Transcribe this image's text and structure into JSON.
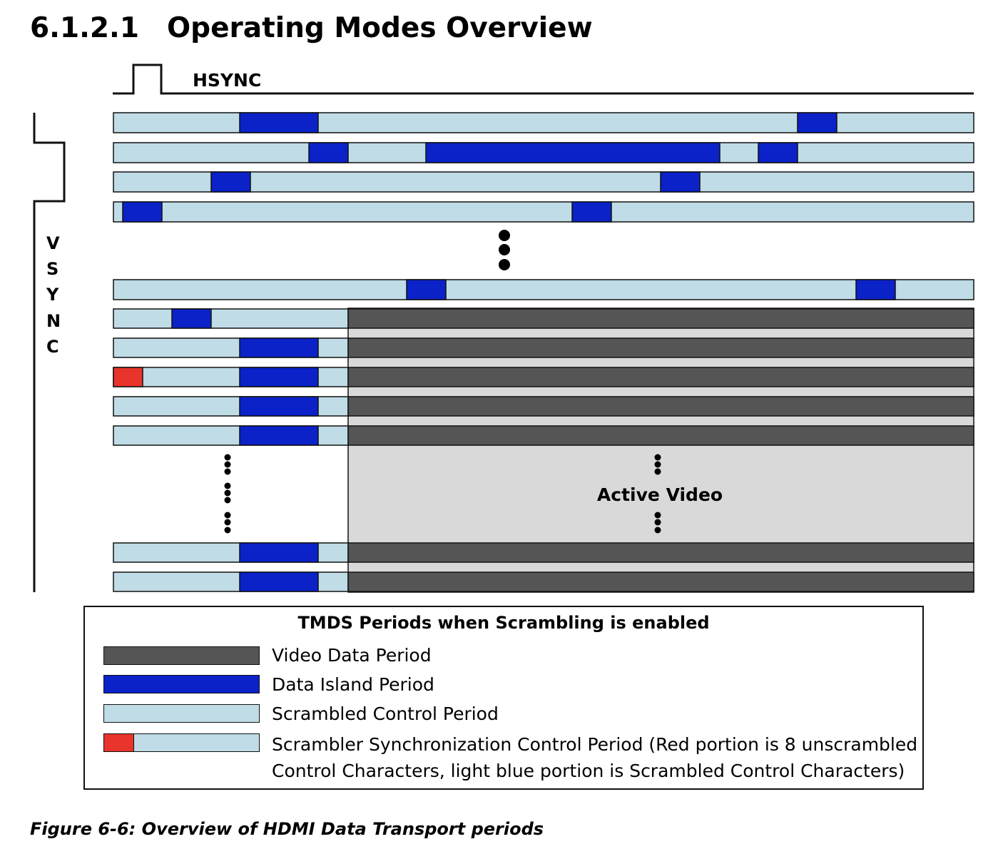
{
  "section": {
    "number": "6.1.2.1",
    "title": "Operating Modes Overview"
  },
  "diagram": {
    "hsync_label": "HSYNC",
    "vsync_letters": [
      "V",
      "S",
      "Y",
      "N",
      "C"
    ],
    "active_video_label": "Active Video",
    "colors": {
      "video_data": "#555555",
      "data_island": "#0a22c8",
      "scrambled_control": "#c0dce6",
      "scrambler_sync_red": "#e8342a",
      "active_video_fill": "#d9d9d9"
    }
  },
  "legend": {
    "title": "TMDS Periods when Scrambling is enabled",
    "items": [
      {
        "label": "Video Data Period"
      },
      {
        "label": "Data Island Period"
      },
      {
        "label": "Scrambled Control Period"
      },
      {
        "label_line1": "Scrambler Synchronization Control Period (Red portion is 8 unscrambled",
        "label_line2": "Control Characters, light blue portion is Scrambled Control Characters)"
      }
    ]
  },
  "caption": "Figure 6-6: Overview of HDMI Data Transport periods"
}
